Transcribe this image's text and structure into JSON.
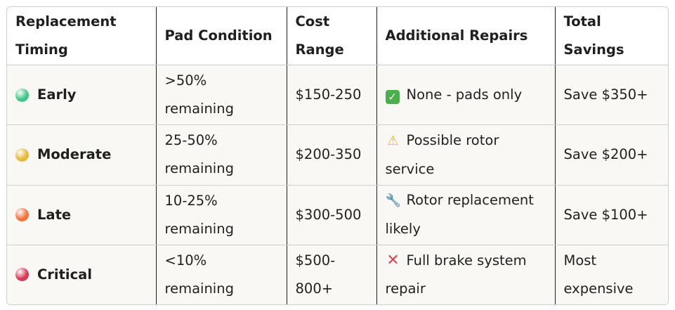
{
  "headers": [
    "Replacement Timing",
    "Pad Condition",
    "Cost Range",
    "Additional Repairs",
    "Total Savings"
  ],
  "rows": [
    {
      "timing": "Early",
      "dot_color": "#3fc78a",
      "condition": "&gt;50% remaining",
      "cost": "$150-250",
      "repair_icon": "check-mark-icon",
      "repair": "None - pads only",
      "savings": "Save $350+"
    },
    {
      "timing": "Moderate",
      "dot_color": "#e6b93d",
      "condition": "25-50% remaining",
      "cost": "$200-350",
      "repair_icon": "warning-icon",
      "repair": "Possible rotor service",
      "savings": "Save $200+"
    },
    {
      "timing": "Late",
      "dot_color": "#f2733d",
      "condition": "10-25% remaining",
      "cost": "$300-500",
      "repair_icon": "wrench-icon",
      "repair": "Rotor replacement likely",
      "savings": "Save $100+"
    },
    {
      "timing": "Critical",
      "dot_color": "#d83a55",
      "condition": "&lt;10% remaining",
      "cost": "$500-800+",
      "repair_icon": "cross-mark-icon",
      "repair": "Full brake system repair",
      "savings": "Most expensive"
    }
  ]
}
